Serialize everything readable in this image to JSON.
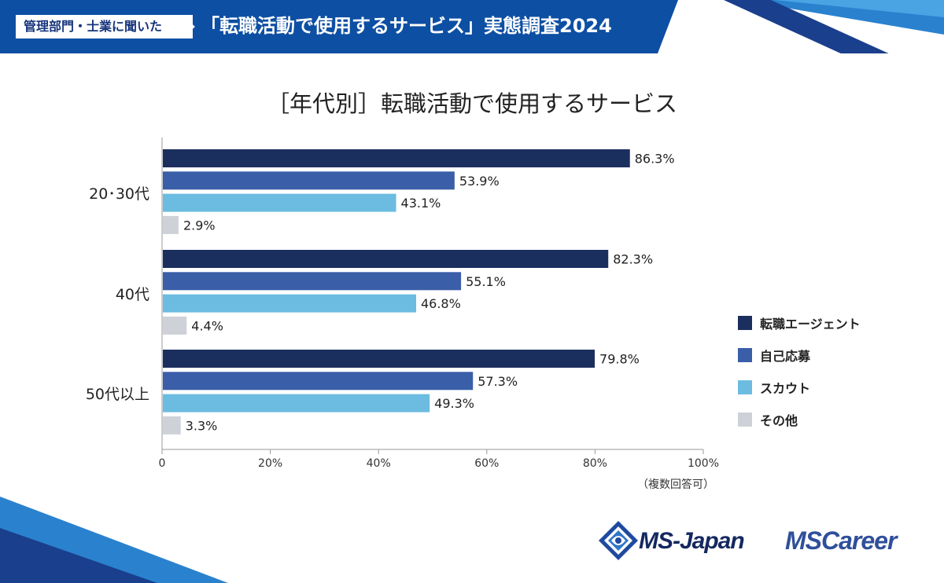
{
  "header": {
    "tag": "管理部門・士業に聞いた",
    "title": "「転職活動で使用するサービス」実態調査2024"
  },
  "colors": {
    "banner": "#0d4fa3",
    "agent": "#1b2f5e",
    "self": "#3a5ea8",
    "scout": "#6bbce0",
    "other": "#cfd1d8"
  },
  "chart_data": {
    "type": "bar",
    "orientation": "horizontal",
    "title": "［年代別］転職活動で使用するサービス",
    "categories": [
      "20･30代",
      "40代",
      "50代以上"
    ],
    "series": [
      {
        "name": "転職エージェント",
        "values": [
          86.3,
          82.3,
          79.8
        ],
        "labels": [
          "86.3%",
          "82.3%",
          "79.8%"
        ]
      },
      {
        "name": "自己応募",
        "values": [
          53.9,
          55.1,
          57.3
        ],
        "labels": [
          "53.9%",
          "55.1%",
          "57.3%"
        ]
      },
      {
        "name": "スカウト",
        "values": [
          43.1,
          46.8,
          49.3
        ],
        "labels": [
          "43.1%",
          "46.8%",
          "49.3%"
        ]
      },
      {
        "name": "その他",
        "values": [
          2.9,
          4.4,
          3.3
        ],
        "labels": [
          "2.9%",
          "4.4%",
          "3.3%"
        ]
      }
    ],
    "xlim": [
      0,
      100
    ],
    "xticks": [
      0,
      20,
      40,
      60,
      80,
      100
    ],
    "xtick_labels": [
      "0",
      "20%",
      "40%",
      "60%",
      "80%",
      "100%"
    ],
    "note": "（複数回答可）",
    "legend_position": "right"
  },
  "logos": {
    "ms_japan": "MS-Japan",
    "ms_career": "MSCareer"
  }
}
